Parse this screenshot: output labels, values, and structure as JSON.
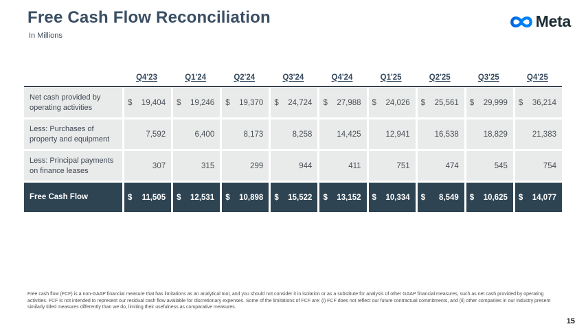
{
  "page": {
    "title": "Free Cash Flow Reconciliation",
    "subtitle": "In Millions",
    "page_number": "15"
  },
  "brand": {
    "wordmark": "Meta",
    "logo_icon": "meta-infinity-icon",
    "blue_dark": "#0064e0",
    "blue_light": "#0082fb",
    "wordmark_color": "#1c2b33"
  },
  "colors": {
    "title_text": "#3a4e63",
    "header_text": "#35495e",
    "cell_background": "#e9eaea",
    "total_row_background": "#2e4452",
    "header_rule": "#39434f",
    "body_text": "#4c5258"
  },
  "table": {
    "currency_symbol": "$",
    "columns": [
      "Q4'23",
      "Q1'24",
      "Q2'24",
      "Q3'24",
      "Q4'24",
      "Q1'25",
      "Q2'25",
      "Q3'25",
      "Q4'25"
    ],
    "rows": [
      {
        "label": "Net cash provided by operating activities",
        "dollar": true,
        "total": false,
        "values": [
          "19,404",
          "19,246",
          "19,370",
          "24,724",
          "27,988",
          "24,026",
          "25,561",
          "29,999",
          "36,214"
        ]
      },
      {
        "label": "Less: Purchases of property and equipment",
        "dollar": false,
        "total": false,
        "values": [
          "7,592",
          "6,400",
          "8,173",
          "8,258",
          "14,425",
          "12,941",
          "16,538",
          "18,829",
          "21,383"
        ]
      },
      {
        "label": "Less: Principal payments on finance leases",
        "dollar": false,
        "total": false,
        "values": [
          "307",
          "315",
          "299",
          "944",
          "411",
          "751",
          "474",
          "545",
          "754"
        ]
      },
      {
        "label": "Free Cash Flow",
        "dollar": true,
        "total": true,
        "values": [
          "11,505",
          "12,531",
          "10,898",
          "15,522",
          "13,152",
          "10,334",
          "8,549",
          "10,625",
          "14,077"
        ]
      }
    ]
  },
  "footnote": "Free cash flow (FCF) is a non-GAAP financial measure that has limitations as an analytical tool, and you should not consider it in isolation or as a substitute for analysis of other GAAP financial measures, such as net cash provided by operating activities. FCF is not intended to represent our residual cash flow available for discretionary expenses. Some of the limitations of FCF are: (i) FCF does not reflect our future contractual commitments, and (ii) other companies in our industry present similarly titled measures differently than we do, limiting their usefulness as comparative measures."
}
